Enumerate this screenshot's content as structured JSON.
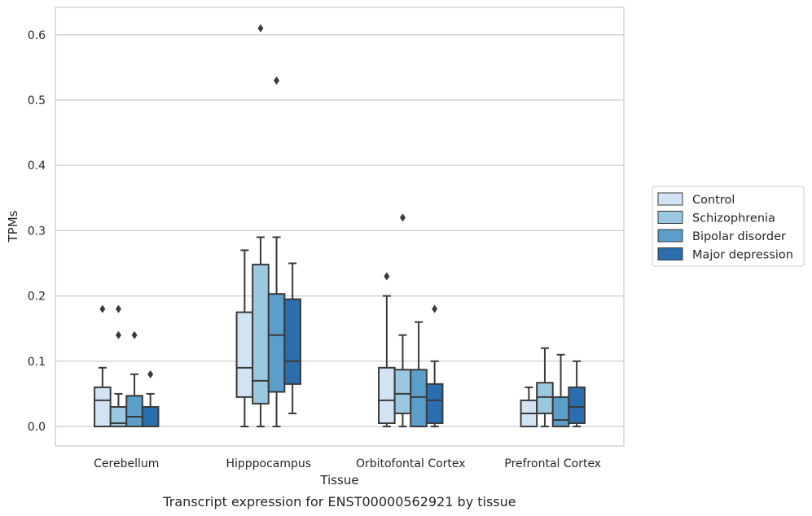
{
  "chart_data": {
    "type": "box",
    "caption": "Transcript expression for ENST00000562921 by tissue",
    "xlabel": "Tissue",
    "ylabel": "TPMs",
    "ylim": [
      -0.03,
      0.64
    ],
    "yticks": [
      0.0,
      0.1,
      0.2,
      0.3,
      0.4,
      0.5,
      0.6
    ],
    "ytick_labels": [
      "0.0",
      "0.1",
      "0.2",
      "0.3",
      "0.4",
      "0.5",
      "0.6"
    ],
    "grid": "horizontal",
    "legend_position": "right-center",
    "categories": [
      "Cerebellum",
      "Hipppocampus",
      "Orbitofontal Cortex",
      "Prefrontal Cortex"
    ],
    "series": [
      {
        "name": "Control",
        "color": "#d2e3f3",
        "boxes": [
          {
            "whislo": 0.0,
            "q1": 0.0,
            "med": 0.04,
            "q3": 0.06,
            "whishi": 0.09,
            "fliers": [
              0.18
            ]
          },
          {
            "whislo": 0.0,
            "q1": 0.045,
            "med": 0.09,
            "q3": 0.175,
            "whishi": 0.27,
            "fliers": []
          },
          {
            "whislo": 0.0,
            "q1": 0.005,
            "med": 0.04,
            "q3": 0.09,
            "whishi": 0.2,
            "fliers": [
              0.23
            ]
          },
          {
            "whislo": 0.0,
            "q1": 0.0,
            "med": 0.02,
            "q3": 0.04,
            "whishi": 0.06,
            "fliers": []
          }
        ]
      },
      {
        "name": "Schizophrenia",
        "color": "#9ac8e0",
        "boxes": [
          {
            "whislo": 0.0,
            "q1": 0.0,
            "med": 0.005,
            "q3": 0.03,
            "whishi": 0.05,
            "fliers": [
              0.14,
              0.18
            ]
          },
          {
            "whislo": 0.0,
            "q1": 0.035,
            "med": 0.07,
            "q3": 0.248,
            "whishi": 0.29,
            "fliers": [
              0.61
            ]
          },
          {
            "whislo": 0.0,
            "q1": 0.02,
            "med": 0.05,
            "q3": 0.087,
            "whishi": 0.14,
            "fliers": [
              0.32
            ]
          },
          {
            "whislo": 0.0,
            "q1": 0.02,
            "med": 0.045,
            "q3": 0.067,
            "whishi": 0.12,
            "fliers": []
          }
        ]
      },
      {
        "name": "Bipolar disorder",
        "color": "#5a9ec9",
        "boxes": [
          {
            "whislo": 0.0,
            "q1": 0.0,
            "med": 0.015,
            "q3": 0.047,
            "whishi": 0.08,
            "fliers": [
              0.14
            ]
          },
          {
            "whislo": 0.0,
            "q1": 0.053,
            "med": 0.14,
            "q3": 0.203,
            "whishi": 0.29,
            "fliers": [
              0.53
            ]
          },
          {
            "whislo": 0.0,
            "q1": 0.0,
            "med": 0.045,
            "q3": 0.087,
            "whishi": 0.16,
            "fliers": []
          },
          {
            "whislo": 0.0,
            "q1": 0.0,
            "med": 0.01,
            "q3": 0.045,
            "whishi": 0.11,
            "fliers": []
          }
        ]
      },
      {
        "name": "Major depression",
        "color": "#2a6ead",
        "boxes": [
          {
            "whislo": 0.0,
            "q1": 0.0,
            "med": 0.0,
            "q3": 0.03,
            "whishi": 0.05,
            "fliers": [
              0.08
            ]
          },
          {
            "whislo": 0.02,
            "q1": 0.065,
            "med": 0.1,
            "q3": 0.195,
            "whishi": 0.25,
            "fliers": []
          },
          {
            "whislo": 0.0,
            "q1": 0.005,
            "med": 0.04,
            "q3": 0.065,
            "whishi": 0.1,
            "fliers": [
              0.18
            ]
          },
          {
            "whislo": 0.0,
            "q1": 0.005,
            "med": 0.03,
            "q3": 0.06,
            "whishi": 0.1,
            "fliers": []
          }
        ]
      }
    ]
  }
}
